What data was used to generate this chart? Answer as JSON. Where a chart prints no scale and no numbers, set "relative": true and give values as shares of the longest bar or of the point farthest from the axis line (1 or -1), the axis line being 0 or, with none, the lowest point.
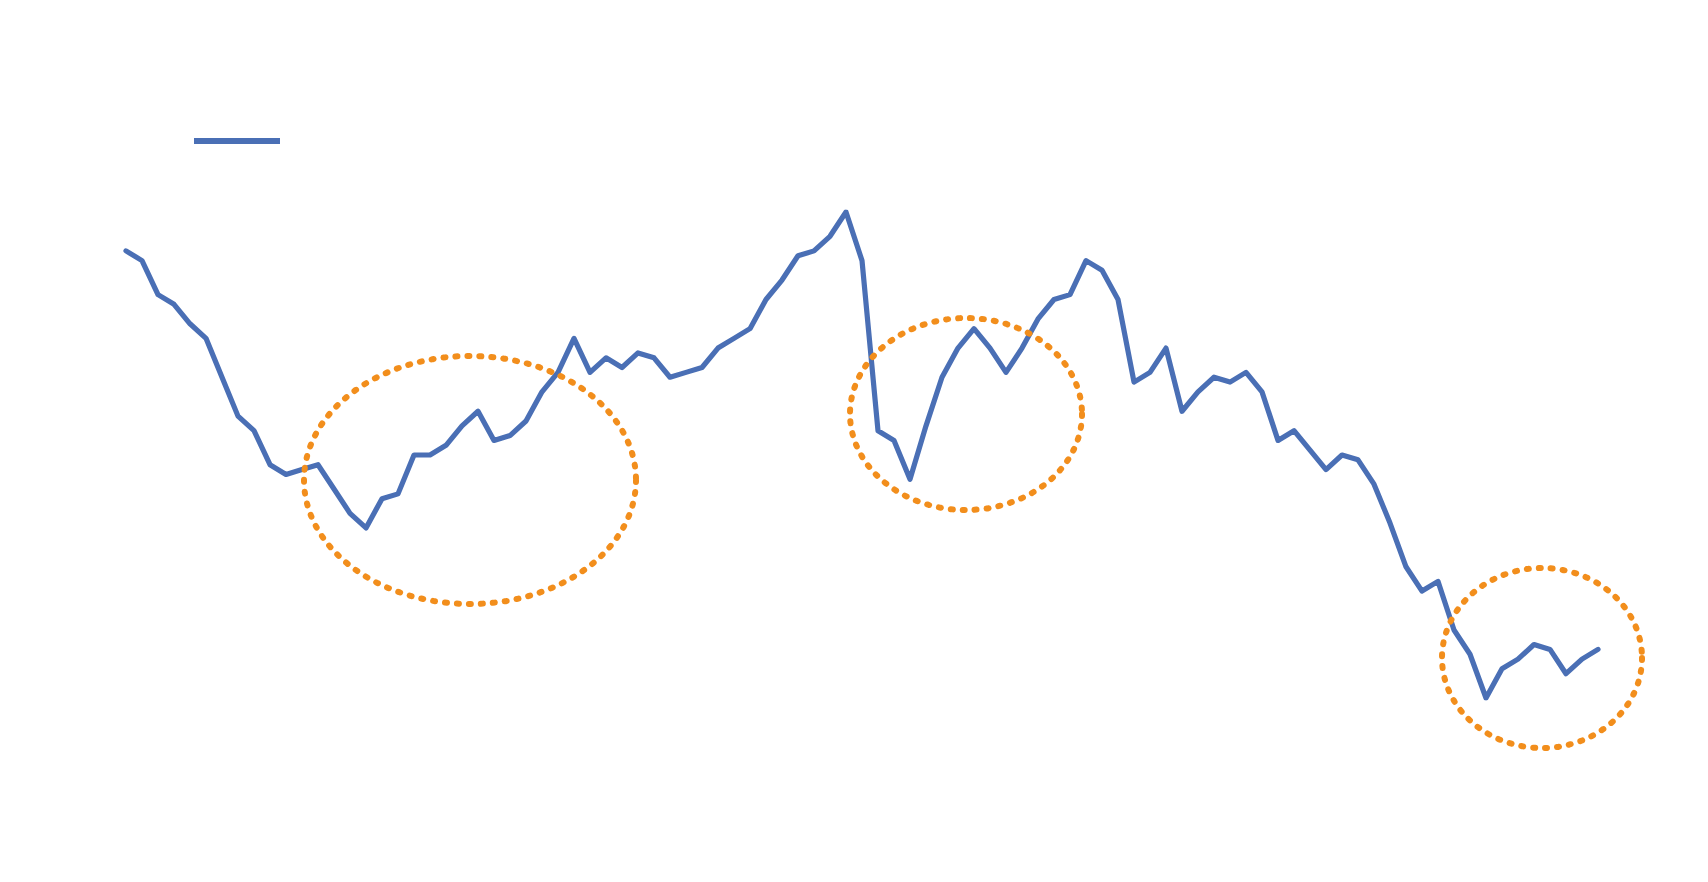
{
  "chart_data": {
    "type": "line",
    "relative": true,
    "grid": false,
    "marker": "none",
    "line_style": "solid",
    "categories": [
      null,
      null,
      null,
      null,
      null,
      null,
      null,
      null,
      null,
      null,
      null,
      null,
      null,
      null,
      null,
      null,
      null,
      null,
      null,
      null,
      null,
      null,
      null,
      null,
      null,
      null,
      null,
      null,
      null,
      null,
      null,
      null,
      null,
      null,
      null,
      null,
      null,
      null,
      null,
      null,
      null,
      null,
      null,
      null,
      null,
      null,
      null,
      null,
      null,
      null,
      null,
      null,
      null,
      null,
      null,
      null,
      null,
      null,
      null,
      null,
      null,
      null,
      null,
      null,
      null,
      null,
      null,
      null,
      null,
      null,
      null,
      null,
      null,
      null,
      null,
      null,
      null,
      null,
      null,
      null,
      null,
      null,
      null,
      null,
      null,
      null,
      null,
      null,
      null,
      null,
      null,
      null,
      null
    ],
    "series": [
      {
        "color": "#4a6fb5",
        "values": [
          0.92,
          0.9,
          0.83,
          0.81,
          0.77,
          0.74,
          0.66,
          0.58,
          0.55,
          0.48,
          0.46,
          0.47,
          0.48,
          0.43,
          0.38,
          0.35,
          0.41,
          0.42,
          0.5,
          0.5,
          0.52,
          0.56,
          0.59,
          0.53,
          0.54,
          0.57,
          0.63,
          0.67,
          0.74,
          0.67,
          0.7,
          0.68,
          0.71,
          0.7,
          0.66,
          0.67,
          0.68,
          0.72,
          0.74,
          0.76,
          0.82,
          0.86,
          0.91,
          0.92,
          0.95,
          1,
          0.9,
          0.55,
          0.53,
          0.45,
          0.56,
          0.66,
          0.72,
          0.76,
          0.72,
          0.67,
          0.72,
          0.78,
          0.82,
          0.83,
          0.9,
          0.88,
          0.82,
          0.65,
          0.67,
          0.72,
          0.59,
          0.63,
          0.66,
          0.65,
          0.67,
          0.63,
          0.53,
          0.55,
          0.51,
          0.47,
          0.5,
          0.49,
          0.44,
          0.36,
          0.27,
          0.22,
          0.24,
          0.14,
          0.09,
          0,
          0.06,
          0.08,
          0.11,
          0.1,
          0.05,
          0.08,
          0.1
        ]
      }
    ]
  }
}
